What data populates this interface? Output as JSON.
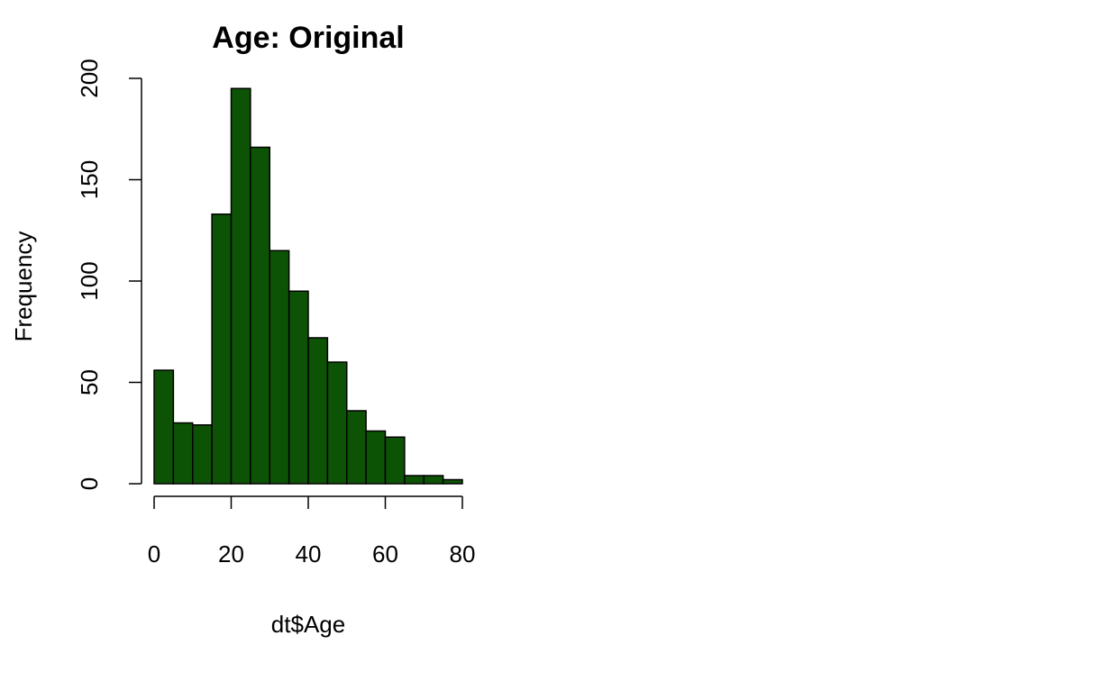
{
  "chart_data": {
    "type": "bar",
    "title": "Age: Original",
    "xlabel": "dt$Age",
    "ylabel": "Frequency",
    "bin_edges": [
      0,
      5,
      10,
      15,
      20,
      25,
      30,
      35,
      40,
      45,
      50,
      55,
      60,
      65,
      70,
      75,
      80
    ],
    "values": [
      56,
      30,
      29,
      133,
      195,
      166,
      115,
      95,
      72,
      60,
      36,
      26,
      23,
      4,
      4,
      2
    ],
    "xlim": [
      0,
      80
    ],
    "ylim": [
      0,
      200
    ],
    "x_ticks": [
      "0",
      "20",
      "40",
      "60",
      "80"
    ],
    "y_ticks": [
      "0",
      "50",
      "100",
      "150",
      "200"
    ],
    "bar_color": "#0d5305",
    "border_color": "#000000",
    "grid": false
  }
}
